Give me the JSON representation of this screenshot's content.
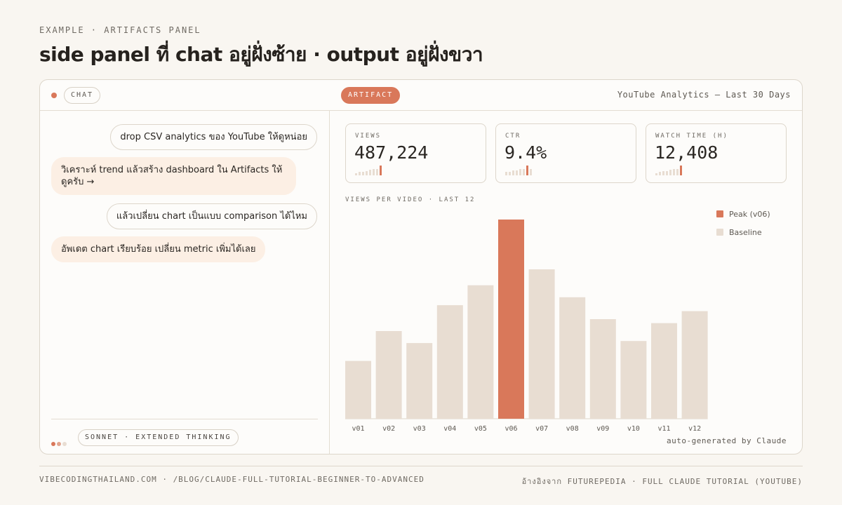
{
  "header": {
    "eyebrow": "EXAMPLE · ARTIFACTS PANEL",
    "title": "side panel ที่ chat อยู่ฝั่งซ้าย · output อยู่ฝั่งขวา"
  },
  "topbar": {
    "chat_label": "CHAT",
    "artifact_label": "ARTIFACT",
    "artifact_title": "YouTube Analytics — Last 30 Days"
  },
  "chat": {
    "messages": [
      {
        "role": "user",
        "text": "drop CSV analytics ของ YouTube ให้ดูหน่อย"
      },
      {
        "role": "assistant",
        "text": "วิเคราะห์ trend แล้วสร้าง dashboard ใน Artifacts ให้ดูครับ →"
      },
      {
        "role": "user",
        "text": "แล้วเปลี่ยน chart เป็นแบบ comparison ได้ไหม"
      },
      {
        "role": "assistant",
        "text": "อัพเดต chart เรียบร้อย เปลี่ยน metric เพิ่มได้เลย"
      }
    ],
    "model_label": "SONNET · EXTENDED THINKING"
  },
  "stats": [
    {
      "label": "VIEWS",
      "value": "487,224",
      "spark": [
        2,
        3,
        3,
        4,
        5,
        6,
        6,
        9
      ]
    },
    {
      "label": "CTR",
      "value": "9.4%",
      "spark": [
        3,
        3,
        4,
        4,
        5,
        5,
        8,
        5
      ]
    },
    {
      "label": "WATCH TIME (H)",
      "value": "12,408",
      "spark": [
        2,
        3,
        4,
        4,
        5,
        6,
        6,
        9
      ]
    }
  ],
  "chart_caption": "VIEWS PER VIDEO · LAST 12",
  "chart_data": {
    "type": "bar",
    "categories": [
      "v01",
      "v02",
      "v03",
      "v04",
      "v05",
      "v06",
      "v07",
      "v08",
      "v09",
      "v10",
      "v11",
      "v12"
    ],
    "series": [
      {
        "name": "Baseline",
        "values": [
          29,
          44,
          38,
          57,
          67,
          100,
          75,
          61,
          50,
          39,
          48,
          54
        ]
      }
    ],
    "highlight_index": 5,
    "legend": [
      "Peak (v06)",
      "Baseline"
    ],
    "legend_placement": "top-right",
    "ylim": [
      0,
      100
    ],
    "grid": false
  },
  "autogen_label": "auto-generated by Claude",
  "colors": {
    "accent": "#d9785a",
    "baseline": "#e8ddd2",
    "peach": "#fcefe4",
    "background": "#f9f6f1"
  },
  "footer": {
    "left": "VIBECODINGTHAILAND.COM · /BLOG/CLAUDE-FULL-TUTORIAL-BEGINNER-TO-ADVANCED",
    "right": "อ้างอิงจาก FUTUREPEDIA · FULL CLAUDE TUTORIAL (YOUTUBE)"
  }
}
